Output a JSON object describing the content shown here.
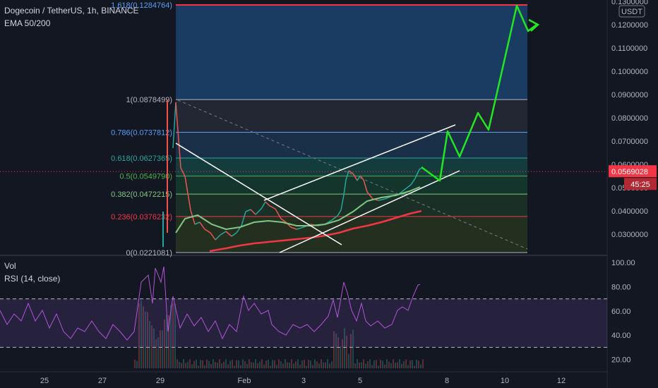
{
  "header": {
    "symbol": "Dogecoin / TetherUS, 1h, BINANCE",
    "ema": "EMA 50/200"
  },
  "rsi_panel": {
    "vol_label": "Vol",
    "rsi_label": "RSI (14, close)"
  },
  "price_axis": {
    "currency": "USDT",
    "current_price": "0.0569028",
    "countdown": "45:25",
    "current_price_color": "#f23645"
  },
  "chart_data": [
    {
      "type": "line",
      "title": "Dogecoin / TetherUS, 1h, BINANCE",
      "y_ticks": [
        "0.1300000",
        "0.1200000",
        "0.1100000",
        "0.1000000",
        "0.0900000",
        "0.0800000",
        "0.0700000",
        "0.0600000",
        "0.0500000",
        "0.0400000",
        "0.0300000"
      ],
      "x_ticks": [
        "25",
        "27",
        "29",
        "Feb",
        "3",
        "5",
        "8",
        "10",
        "12"
      ],
      "ylim": [
        0.0205,
        0.1305
      ],
      "fibonacci": [
        {
          "label": "1.618(0.1284764)",
          "value": 0.1284764,
          "color": "#5b9cf6"
        },
        {
          "label": "1(0.0878499)",
          "value": 0.0878499,
          "color": "#b2b5be"
        },
        {
          "label": "0.786(0.0737812)",
          "value": 0.0737812,
          "color": "#5b9cf6"
        },
        {
          "label": "0.618(0.0627365)",
          "value": 0.0627365,
          "color": "#26a69a"
        },
        {
          "label": "0.5(0.0549790)",
          "value": 0.054979,
          "color": "#4caf50"
        },
        {
          "label": "0.382(0.0472215)",
          "value": 0.0472215,
          "color": "#81c784"
        },
        {
          "label": "0.236(0.0376232)",
          "value": 0.0376232,
          "color": "#f23645"
        },
        {
          "label": "0(0.0221081)",
          "value": 0.0221081,
          "color": "#b2b5be"
        }
      ],
      "series": [
        {
          "name": "EMA 50",
          "color": "#81c784",
          "points": [
            [
              249,
              330
            ],
            [
              262,
              310
            ],
            [
              280,
              305
            ],
            [
              300,
              318
            ],
            [
              320,
              325
            ],
            [
              340,
              322
            ],
            [
              360,
              315
            ],
            [
              380,
              313
            ],
            [
              400,
              315
            ],
            [
              420,
              320
            ],
            [
              440,
              320
            ],
            [
              460,
              318
            ],
            [
              480,
              312
            ],
            [
              500,
              300
            ],
            [
              520,
              285
            ],
            [
              540,
              280
            ],
            [
              560,
              277
            ],
            [
              580,
              271
            ],
            [
              595,
              265
            ]
          ]
        },
        {
          "name": "EMA 200",
          "color": "#f23645",
          "points": [
            [
              297,
              356
            ],
            [
              320,
              352
            ],
            [
              340,
              348
            ],
            [
              360,
              345
            ],
            [
              380,
              343
            ],
            [
              400,
              341
            ],
            [
              420,
              339
            ],
            [
              440,
              337
            ],
            [
              460,
              334
            ],
            [
              480,
              330
            ],
            [
              500,
              324
            ],
            [
              520,
              320
            ],
            [
              540,
              315
            ],
            [
              560,
              309
            ],
            [
              580,
              303
            ],
            [
              597,
              299
            ]
          ]
        }
      ],
      "price_path": [
        [
          245,
          210
        ],
        [
          249,
          145
        ],
        [
          256,
          238
        ],
        [
          262,
          250
        ],
        [
          270,
          298
        ],
        [
          276,
          318
        ],
        [
          283,
          315
        ],
        [
          290,
          325
        ],
        [
          298,
          330
        ],
        [
          305,
          340
        ],
        [
          312,
          333
        ],
        [
          320,
          328
        ],
        [
          328,
          335
        ],
        [
          335,
          330
        ],
        [
          342,
          320
        ],
        [
          348,
          300
        ],
        [
          355,
          297
        ],
        [
          362,
          304
        ],
        [
          370,
          296
        ],
        [
          376,
          286
        ],
        [
          382,
          292
        ],
        [
          390,
          296
        ],
        [
          398,
          310
        ],
        [
          405,
          315
        ],
        [
          412,
          322
        ],
        [
          420,
          325
        ],
        [
          430,
          322
        ],
        [
          440,
          318
        ],
        [
          450,
          320
        ],
        [
          460,
          318
        ],
        [
          470,
          312
        ],
        [
          478,
          306
        ],
        [
          483,
          298
        ],
        [
          487,
          276
        ],
        [
          490,
          255
        ],
        [
          494,
          242
        ],
        [
          500,
          246
        ],
        [
          506,
          256
        ],
        [
          510,
          249
        ],
        [
          515,
          255
        ],
        [
          520,
          272
        ],
        [
          528,
          282
        ],
        [
          536,
          284
        ],
        [
          545,
          282
        ],
        [
          555,
          278
        ],
        [
          565,
          275
        ],
        [
          574,
          268
        ],
        [
          582,
          262
        ],
        [
          588,
          253
        ],
        [
          594,
          240
        ],
        [
          598,
          238
        ]
      ],
      "projection_path": [
        [
          597,
          237
        ],
        [
          623,
          256
        ],
        [
          634,
          186
        ],
        [
          651,
          222
        ],
        [
          677,
          160
        ],
        [
          692,
          184
        ],
        [
          732,
          8
        ],
        [
          748,
          44
        ],
        [
          760,
          35
        ]
      ],
      "rsi": {
        "ylim": [
          15,
          102
        ],
        "y_ticks": [
          "100.00",
          "80.00",
          "60.00",
          "40.00",
          "20.00"
        ],
        "levels": [
          70,
          30
        ],
        "color": "#b154d5",
        "points": [
          [
            0,
            440
          ],
          [
            10,
            460
          ],
          [
            20,
            445
          ],
          [
            30,
            455
          ],
          [
            40,
            430
          ],
          [
            50,
            455
          ],
          [
            60,
            440
          ],
          [
            70,
            465
          ],
          [
            80,
            445
          ],
          [
            90,
            470
          ],
          [
            100,
            480
          ],
          [
            110,
            465
          ],
          [
            120,
            470
          ],
          [
            130,
            455
          ],
          [
            140,
            470
          ],
          [
            150,
            480
          ],
          [
            160,
            460
          ],
          [
            170,
            470
          ],
          [
            180,
            482
          ],
          [
            190,
            470
          ],
          [
            200,
            400
          ],
          [
            210,
            390
          ],
          [
            216,
            430
          ],
          [
            220,
            380
          ],
          [
            228,
            400
          ],
          [
            232,
            378
          ],
          [
            238,
            470
          ],
          [
            245,
            420
          ],
          [
            255,
            465
          ],
          [
            265,
            445
          ],
          [
            275,
            462
          ],
          [
            285,
            450
          ],
          [
            295,
            470
          ],
          [
            305,
            455
          ],
          [
            315,
            480
          ],
          [
            325,
            460
          ],
          [
            335,
            470
          ],
          [
            345,
            420
          ],
          [
            352,
            440
          ],
          [
            360,
            430
          ],
          [
            370,
            445
          ],
          [
            380,
            440
          ],
          [
            385,
            460
          ],
          [
            395,
            470
          ],
          [
            405,
            475
          ],
          [
            415,
            460
          ],
          [
            425,
            465
          ],
          [
            435,
            460
          ],
          [
            445,
            470
          ],
          [
            455,
            460
          ],
          [
            465,
            448
          ],
          [
            472,
            425
          ],
          [
            478,
            450
          ],
          [
            487,
            400
          ],
          [
            492,
            415
          ],
          [
            498,
            440
          ],
          [
            505,
            455
          ],
          [
            512,
            430
          ],
          [
            518,
            455
          ],
          [
            525,
            462
          ],
          [
            535,
            455
          ],
          [
            545,
            465
          ],
          [
            555,
            460
          ],
          [
            563,
            440
          ],
          [
            570,
            435
          ],
          [
            578,
            440
          ],
          [
            585,
            420
          ],
          [
            592,
            404
          ],
          [
            595,
            403
          ]
        ]
      }
    }
  ]
}
